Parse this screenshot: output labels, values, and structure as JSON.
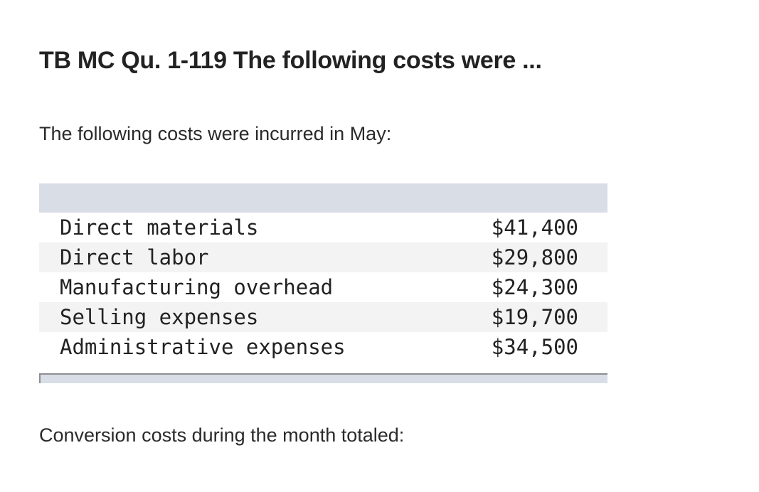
{
  "title": "TB MC Qu. 1-119 The following costs were ...",
  "intro": "The following costs were incurred in May:",
  "costs": [
    {
      "label": "Direct materials",
      "amount": "$41,400"
    },
    {
      "label": "Direct labor",
      "amount": "$29,800"
    },
    {
      "label": "Manufacturing overhead",
      "amount": "$24,300"
    },
    {
      "label": "Selling expenses",
      "amount": "$19,700"
    },
    {
      "label": "Administrative expenses",
      "amount": "$34,500"
    }
  ],
  "question": "Conversion costs during the month totaled:",
  "colors": {
    "table_header": "#d8dde6",
    "row_shade": "#f3f3f3",
    "text": "#222222"
  }
}
